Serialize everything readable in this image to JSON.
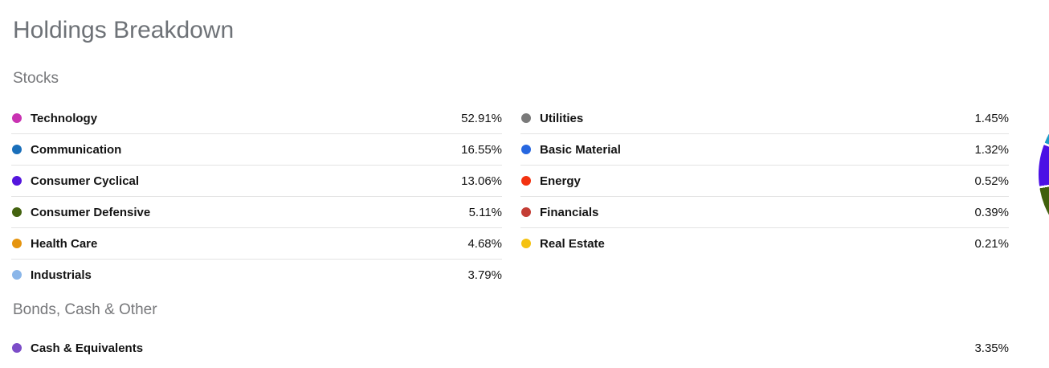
{
  "header": {
    "title": "Holdings Breakdown"
  },
  "stocks": {
    "heading": "Stocks",
    "left": [
      {
        "label": "Technology",
        "value": "52.91%",
        "color": "#c932b2"
      },
      {
        "label": "Communication",
        "value": "16.55%",
        "color": "#1a6fba"
      },
      {
        "label": "Consumer Cyclical",
        "value": "13.06%",
        "color": "#5415dd"
      },
      {
        "label": "Consumer Defensive",
        "value": "5.11%",
        "color": "#446310"
      },
      {
        "label": "Health Care",
        "value": "4.68%",
        "color": "#e5940f"
      },
      {
        "label": "Industrials",
        "value": "3.79%",
        "color": "#8ab6e9"
      }
    ],
    "right": [
      {
        "label": "Utilities",
        "value": "1.45%",
        "color": "#7a7a7a"
      },
      {
        "label": "Basic Material",
        "value": "1.32%",
        "color": "#2767e0"
      },
      {
        "label": "Energy",
        "value": "0.52%",
        "color": "#f33210"
      },
      {
        "label": "Financials",
        "value": "0.39%",
        "color": "#c43d35"
      },
      {
        "label": "Real Estate",
        "value": "0.21%",
        "color": "#f5c211"
      }
    ]
  },
  "bonds": {
    "heading": "Bonds, Cash & Other",
    "rows": [
      {
        "label": "Cash & Equivalents",
        "value": "3.35%",
        "color": "#7c4dc8"
      }
    ]
  },
  "pie": {
    "description": "pie chart clipped at right screen edge, only left sliver visible",
    "slices": [
      {
        "color": "transparent",
        "from": 0,
        "to": 230
      },
      {
        "color": "#40600c",
        "from": 230,
        "to": 260.5
      },
      {
        "color": "#ffffff",
        "from": 260.5,
        "to": 262
      },
      {
        "color": "#4b10e5",
        "from": 262,
        "to": 290.5
      },
      {
        "color": "#ffffff",
        "from": 290.5,
        "to": 292
      },
      {
        "color": "#1b9dc9",
        "from": 292,
        "to": 298.5
      },
      {
        "color": "transparent",
        "from": 298.5,
        "to": 360
      }
    ]
  },
  "chart_data": {
    "type": "pie",
    "title": "Holdings Breakdown",
    "series": [
      {
        "name": "Stocks",
        "categories": [
          "Technology",
          "Communication",
          "Consumer Cyclical",
          "Consumer Defensive",
          "Health Care",
          "Industrials",
          "Utilities",
          "Basic Material",
          "Energy",
          "Financials",
          "Real Estate"
        ],
        "values": [
          52.91,
          16.55,
          13.06,
          5.11,
          4.68,
          3.79,
          1.45,
          1.32,
          0.52,
          0.39,
          0.21
        ]
      },
      {
        "name": "Bonds, Cash & Other",
        "categories": [
          "Cash & Equivalents"
        ],
        "values": [
          3.35
        ]
      }
    ],
    "legend_position": "two-column legend list; pie glyph clipped at right edge of viewport"
  }
}
